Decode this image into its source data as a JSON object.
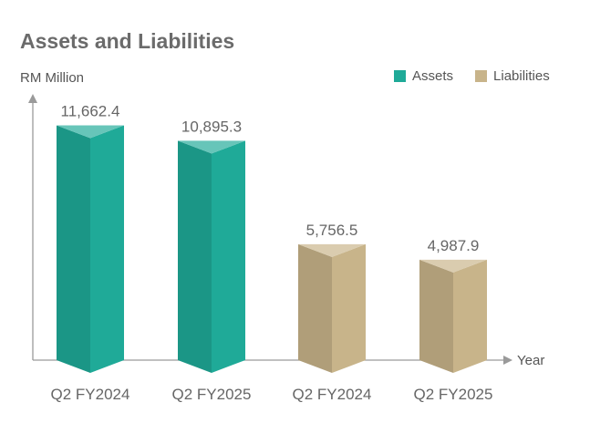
{
  "chart_data": {
    "type": "bar",
    "title": "Assets and Liabilities",
    "ylabel": "RM Million",
    "xlabel": "Year",
    "ylim": [
      0,
      12000
    ],
    "legend_position": "top-right",
    "series": [
      {
        "name": "Assets",
        "color": "#1faa98",
        "bars": [
          {
            "category": "Q2 FY2024",
            "value": 11662.4,
            "label": "11,662.4"
          },
          {
            "category": "Q2 FY2025",
            "value": 10895.3,
            "label": "10,895.3"
          }
        ]
      },
      {
        "name": "Liabilities",
        "color": "#c8b48a",
        "bars": [
          {
            "category": "Q2 FY2024",
            "value": 5756.5,
            "label": "5,756.5"
          },
          {
            "category": "Q2 FY2025",
            "value": 4987.9,
            "label": "4,987.9"
          }
        ]
      }
    ]
  }
}
